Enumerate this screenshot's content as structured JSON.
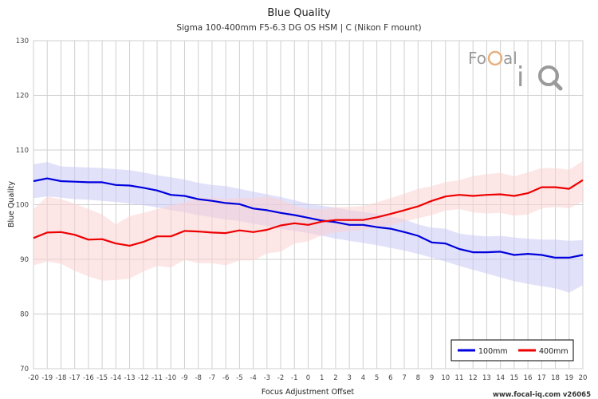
{
  "chart_data": {
    "type": "line",
    "title": "Blue Quality",
    "subtitle": "Sigma 100-400mm F5-6.3 DG OS HSM | C (Nikon F mount)",
    "xlabel": "Focus Adjustment Offset",
    "ylabel": "Blue Quality",
    "xlim": [
      -20,
      20
    ],
    "ylim": [
      70,
      130
    ],
    "yticks": [
      70,
      80,
      90,
      100,
      110,
      120,
      130
    ],
    "x": [
      -20,
      -19,
      -18,
      -17,
      -16,
      -15,
      -14,
      -13,
      -12,
      -11,
      -10,
      -9,
      -8,
      -7,
      -6,
      -5,
      -4,
      -3,
      -2,
      -1,
      0,
      1,
      2,
      3,
      4,
      5,
      6,
      7,
      8,
      9,
      10,
      11,
      12,
      13,
      14,
      15,
      16,
      17,
      18,
      19,
      20
    ],
    "grid": true,
    "legend_position": "bottom-right",
    "series": [
      {
        "name": "100mm",
        "color": "#0000dd",
        "band_color": "#c8c8f5",
        "values": [
          104.3,
          104.8,
          104.3,
          104.2,
          104.1,
          104.1,
          103.6,
          103.5,
          103.1,
          102.6,
          101.8,
          101.6,
          101.0,
          100.7,
          100.3,
          100.1,
          99.3,
          99.0,
          98.5,
          98.1,
          97.6,
          97.1,
          96.8,
          96.3,
          96.3,
          95.9,
          95.6,
          95.0,
          94.3,
          93.1,
          92.9,
          91.9,
          91.3,
          91.3,
          91.4,
          90.8,
          91.0,
          90.8,
          90.3,
          90.3,
          90.8
        ],
        "upper": [
          107.4,
          107.8,
          107.0,
          106.9,
          106.8,
          106.7,
          106.5,
          106.3,
          105.9,
          105.4,
          105.0,
          104.6,
          104.0,
          103.6,
          103.4,
          102.9,
          102.4,
          101.9,
          101.4,
          100.8,
          100.2,
          99.8,
          99.5,
          99.0,
          98.7,
          98.3,
          97.8,
          97.3,
          96.4,
          95.8,
          95.6,
          94.7,
          94.4,
          94.2,
          94.3,
          94.0,
          93.8,
          93.6,
          93.6,
          93.4,
          93.5
        ],
        "lower": [
          101.2,
          101.5,
          101.3,
          101.0,
          100.9,
          100.7,
          100.5,
          100.2,
          99.9,
          99.5,
          99.0,
          98.6,
          98.1,
          97.7,
          97.3,
          97.0,
          96.5,
          96.1,
          95.6,
          95.2,
          94.8,
          94.3,
          93.8,
          93.4,
          93.0,
          92.6,
          92.1,
          91.6,
          91.0,
          90.3,
          89.6,
          88.8,
          88.1,
          87.4,
          86.7,
          86.0,
          85.5,
          85.1,
          84.7,
          83.9,
          85.3
        ]
      },
      {
        "name": "400mm",
        "color": "#ee0000",
        "band_color": "#fbd2d2",
        "values": [
          93.9,
          94.9,
          95.0,
          94.5,
          93.6,
          93.7,
          92.9,
          92.5,
          93.2,
          94.2,
          94.2,
          95.2,
          95.1,
          94.9,
          94.8,
          95.3,
          95.0,
          95.4,
          96.2,
          96.6,
          96.3,
          96.9,
          97.2,
          97.2,
          97.2,
          97.7,
          98.3,
          99.0,
          99.7,
          100.7,
          101.5,
          101.8,
          101.6,
          101.8,
          101.9,
          101.6,
          102.1,
          103.2,
          103.2,
          102.9,
          104.5
        ],
        "upper": [
          99.2,
          101.5,
          101.0,
          100.2,
          99.2,
          98.2,
          96.4,
          97.9,
          98.5,
          99.2,
          99.9,
          100.4,
          101.2,
          101.3,
          101.0,
          101.3,
          101.2,
          101.5,
          100.9,
          99.8,
          99.2,
          99.2,
          99.5,
          99.6,
          99.8,
          100.4,
          101.2,
          102.0,
          102.9,
          103.4,
          104.1,
          104.5,
          105.2,
          105.6,
          105.8,
          105.2,
          105.9,
          106.7,
          106.7,
          106.4,
          108.0
        ],
        "lower": [
          88.9,
          89.6,
          89.2,
          87.9,
          86.9,
          86.1,
          86.2,
          86.5,
          87.8,
          88.8,
          88.5,
          89.9,
          89.3,
          89.3,
          88.9,
          89.8,
          89.8,
          91.1,
          91.4,
          92.9,
          93.3,
          94.4,
          94.9,
          95.2,
          95.4,
          95.9,
          96.2,
          96.9,
          97.5,
          98.1,
          98.9,
          99.2,
          98.6,
          98.4,
          98.5,
          98.0,
          98.2,
          99.3,
          99.6,
          99.3,
          100.6
        ]
      }
    ]
  },
  "watermark": "www.focal-iq.com  v26065",
  "logo": "FoCal iQ"
}
